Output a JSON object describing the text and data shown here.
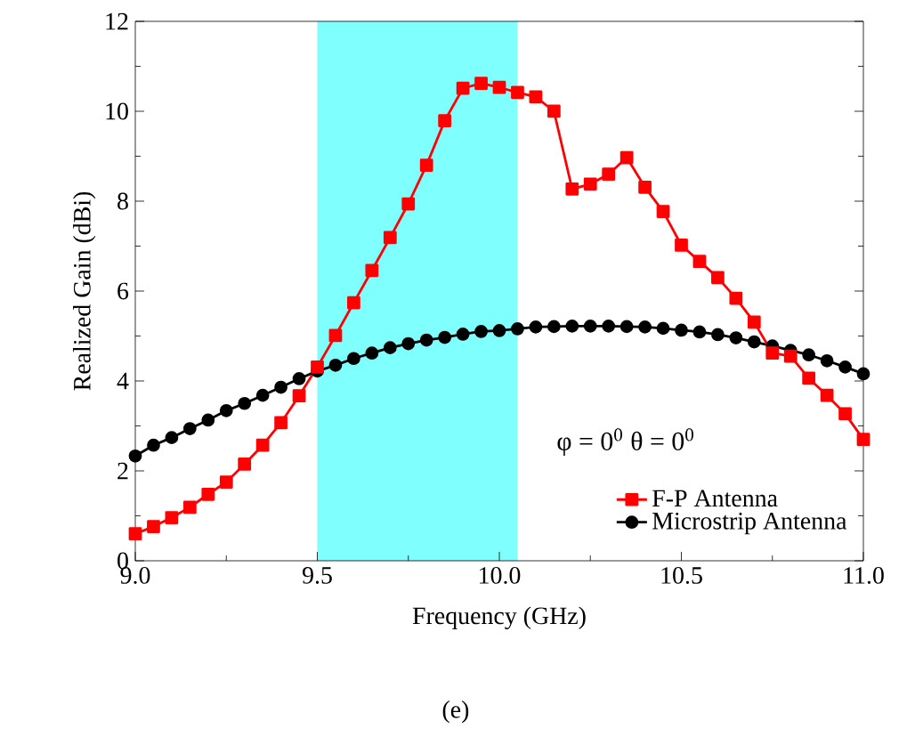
{
  "chart_data": {
    "type": "line",
    "xlabel": "Frequency (GHz)",
    "ylabel": "Realized Gain (dBi)",
    "x": [
      9.0,
      9.05,
      9.1,
      9.15,
      9.2,
      9.25,
      9.3,
      9.35,
      9.4,
      9.45,
      9.5,
      9.55,
      9.6,
      9.65,
      9.7,
      9.75,
      9.8,
      9.85,
      9.9,
      9.95,
      10.0,
      10.05,
      10.1,
      10.15,
      10.2,
      10.25,
      10.3,
      10.35,
      10.4,
      10.45,
      10.5,
      10.55,
      10.6,
      10.65,
      10.7,
      10.75,
      10.8,
      10.85,
      10.9,
      10.95,
      11.0
    ],
    "series": [
      {
        "name": "F-P   Antenna",
        "color": "#ff0000",
        "marker": "square",
        "values": [
          0.6,
          0.76,
          0.96,
          1.19,
          1.48,
          1.75,
          2.15,
          2.57,
          3.07,
          3.67,
          4.31,
          5.01,
          5.74,
          6.46,
          7.19,
          7.94,
          8.8,
          9.79,
          10.51,
          10.62,
          10.53,
          10.42,
          10.32,
          10.0,
          8.27,
          8.38,
          8.6,
          8.97,
          8.31,
          7.77,
          7.02,
          6.66,
          6.3,
          5.84,
          5.31,
          4.62,
          4.55,
          4.06,
          3.68,
          3.27,
          2.7
        ]
      },
      {
        "name": "Microstrip Antenna",
        "color": "#000000",
        "marker": "circle",
        "values": [
          2.33,
          2.57,
          2.74,
          2.94,
          3.13,
          3.34,
          3.5,
          3.68,
          3.86,
          4.05,
          4.22,
          4.35,
          4.5,
          4.62,
          4.74,
          4.83,
          4.91,
          4.97,
          5.04,
          5.1,
          5.12,
          5.16,
          5.2,
          5.21,
          5.22,
          5.22,
          5.22,
          5.21,
          5.2,
          5.17,
          5.13,
          5.09,
          5.03,
          4.96,
          4.87,
          4.78,
          4.68,
          4.58,
          4.45,
          4.31,
          4.16
        ]
      }
    ],
    "xlim": [
      9.0,
      11.0
    ],
    "ylim": [
      0,
      12
    ],
    "xticks": [
      {
        "value": 9.0,
        "label": "9.0"
      },
      {
        "value": 9.5,
        "label": "9.5"
      },
      {
        "value": 10.0,
        "label": "10.0"
      },
      {
        "value": 10.5,
        "label": "10.5"
      },
      {
        "value": 11.0,
        "label": "11.0"
      }
    ],
    "yticks": [
      0,
      2,
      4,
      6,
      8,
      10,
      12
    ],
    "bands": [
      {
        "axis": "x",
        "from": 9.5,
        "to": 10.05,
        "color": "#80ffff"
      }
    ],
    "annotations": [
      "φ = 0$^{0}$   θ = 0$^{0}$",
      "(e)"
    ],
    "legend": "bottom right",
    "line_style": "solid",
    "grid": false
  }
}
